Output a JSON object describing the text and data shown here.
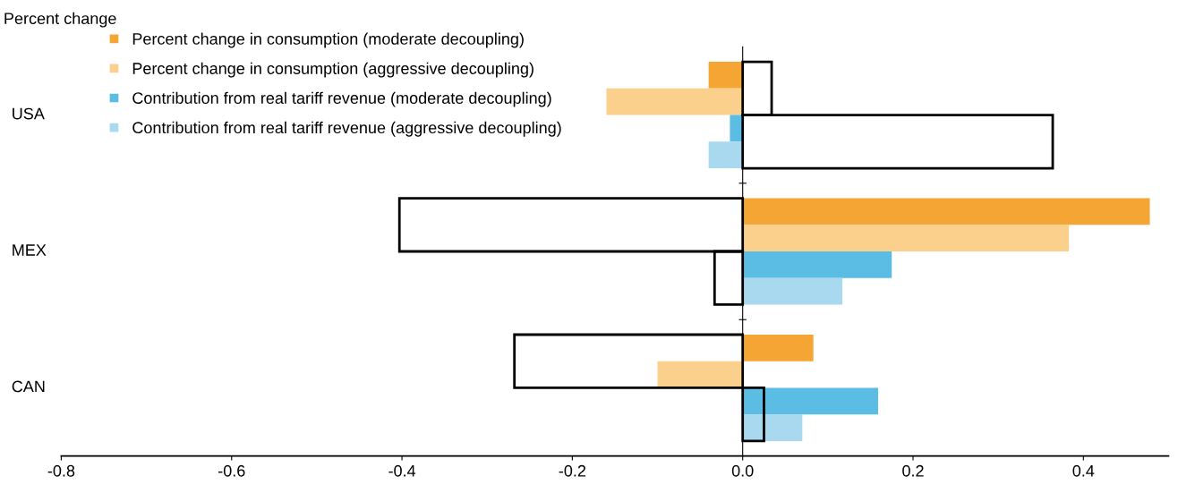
{
  "chart_data": {
    "type": "bar",
    "orientation": "horizontal",
    "ylabel": "Percent change",
    "categories": [
      "USA",
      "MEX",
      "CAN"
    ],
    "series": [
      {
        "name": "Percent change in consumption (moderate decoupling)",
        "color": "#f5a533",
        "values": [
          -0.04,
          0.478,
          0.083
        ]
      },
      {
        "name": "Percent change in consumption (aggressive decoupling)",
        "color": "#fbd08c",
        "values": [
          -0.16,
          0.383,
          -0.1
        ]
      },
      {
        "name": "Contribution from real tariff revenue (moderate decoupling)",
        "color": "#5bbce4",
        "values": [
          -0.015,
          0.175,
          0.159
        ]
      },
      {
        "name": "Contribution from real tariff revenue (aggressive decoupling)",
        "color": "#a9d9ef",
        "values": [
          -0.04,
          0.117,
          0.07
        ]
      },
      {
        "color": "#000000",
        "line_style": "solid",
        "values": [
          0.034,
          -0.403,
          -0.268
        ]
      },
      {
        "color": "#000000",
        "line_style": "solid",
        "values": [
          0.364,
          -0.033,
          0.025
        ]
      }
    ],
    "xlim": [
      -0.8,
      0.5
    ],
    "xticks": [
      {
        "value": -0.8,
        "label": "-0.8"
      },
      {
        "value": -0.6,
        "label": "-0.6"
      },
      {
        "value": -0.4,
        "label": "-0.4"
      },
      {
        "value": -0.2,
        "label": "-0.2"
      },
      {
        "value": 0,
        "label": "0.0"
      },
      {
        "value": 0.2,
        "label": "0.2"
      },
      {
        "value": 0.4,
        "label": "0.4"
      }
    ],
    "legend": "top left"
  }
}
